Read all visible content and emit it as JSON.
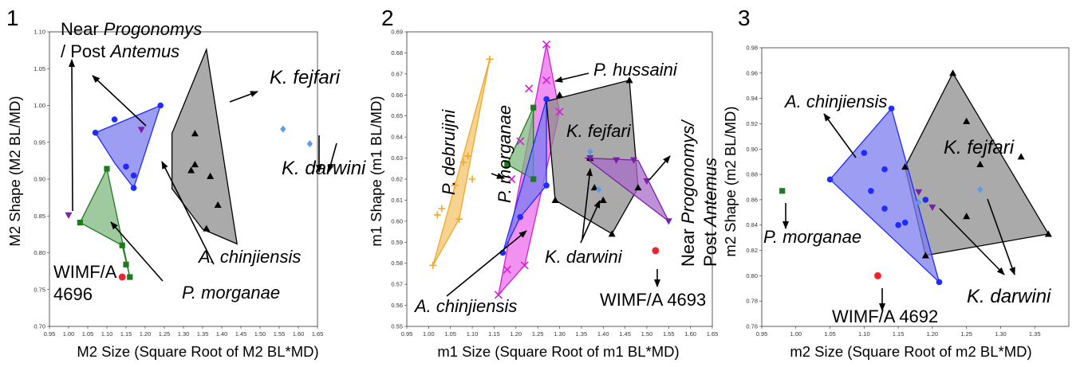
{
  "chart_data": [
    {
      "type": "scatter",
      "panel_label": "1",
      "xlabel": "M2 Size (Square Root of M2 BL*MD)",
      "ylabel": "M2 Shape (M2 BL/MD)",
      "xlim": [
        0.95,
        1.65
      ],
      "ylim": [
        0.7,
        1.1
      ],
      "x_ticks": [
        "0.95",
        "1.00",
        "1.05",
        "1.10",
        "1.15",
        "1.20",
        "1.25",
        "1.30",
        "1.35",
        "1.40",
        "1.45",
        "1.50",
        "1.55",
        "1.60",
        "1.65"
      ],
      "y_ticks": [
        "0.70",
        "0.75",
        "0.80",
        "0.85",
        "0.90",
        "0.95",
        "1.00",
        "1.05",
        "1.10"
      ],
      "series": [
        {
          "name": "A. chinjiensis",
          "color": "#1f2cff",
          "fill": "#7c7cf0",
          "marker": "circle",
          "hull": [
            [
              1.07,
              0.963
            ],
            [
              1.24,
              1.0
            ],
            [
              1.17,
              0.888
            ],
            [
              1.12,
              0.922
            ]
          ],
          "points": [
            [
              1.07,
              0.963
            ],
            [
              1.12,
              0.981
            ],
            [
              1.24,
              1.0
            ],
            [
              1.17,
              0.888
            ],
            [
              1.17,
              0.905
            ],
            [
              1.15,
              0.917
            ]
          ]
        },
        {
          "name": "P. morganae",
          "color": "#1e7a1e",
          "fill": "#7fb77f",
          "marker": "square",
          "hull": [
            [
              1.03,
              0.841
            ],
            [
              1.1,
              0.914
            ],
            [
              1.16,
              0.767
            ],
            [
              1.14,
              0.81
            ]
          ],
          "points": [
            [
              1.03,
              0.841
            ],
            [
              1.1,
              0.914
            ],
            [
              1.14,
              0.81
            ],
            [
              1.15,
              0.784
            ],
            [
              1.16,
              0.767
            ]
          ]
        },
        {
          "name": "K. fejfari",
          "color": "#000000",
          "fill": "#8e8e8e",
          "marker": "triangle",
          "hull": [
            [
              1.27,
              0.962
            ],
            [
              1.36,
              1.076
            ],
            [
              1.44,
              0.812
            ],
            [
              1.35,
              0.832
            ],
            [
              1.27,
              0.887
            ]
          ],
          "points": [
            [
              1.33,
              0.962
            ],
            [
              1.33,
              0.92
            ],
            [
              1.32,
              0.912
            ],
            [
              1.37,
              0.904
            ],
            [
              1.39,
              0.865
            ],
            [
              1.36,
              0.833
            ]
          ]
        },
        {
          "name": "Near Progonomys / Post Antemus",
          "color": "#7a1fa8",
          "marker": "triangle-down",
          "points": [
            [
              1.0,
              0.851
            ],
            [
              1.19,
              0.967
            ]
          ]
        },
        {
          "name": "K. darwini",
          "color": "#5b9be8",
          "marker": "diamond",
          "points": [
            [
              1.56,
              0.968
            ],
            [
              1.63,
              0.948
            ]
          ]
        },
        {
          "name": "WIMF/A 4696",
          "color": "#e8242c",
          "marker": "star",
          "points": [
            [
              1.14,
              0.767
            ]
          ]
        }
      ],
      "annotations": [
        {
          "text": "Near ",
          "italic": "Progonomys",
          "id": "near-a"
        },
        {
          "text": "/ Post ",
          "italic": "Antemus",
          "id": "near-b"
        },
        {
          "text": "K. fejfari",
          "id": "kf"
        },
        {
          "text": "K. darwini",
          "id": "kd"
        },
        {
          "text": "A. chinjiensis",
          "id": "ac"
        },
        {
          "text": "P. morganae",
          "id": "pm"
        },
        {
          "text": "WIMF/A",
          "id": "w1"
        },
        {
          "text": "4696",
          "id": "w2"
        }
      ]
    },
    {
      "type": "scatter",
      "panel_label": "2",
      "xlabel": "m1 Size (Square Root of m1 BL*MD)",
      "ylabel": "m1 Shape (m1 BL/MD)",
      "xlim": [
        0.95,
        1.65
      ],
      "ylim": [
        0.55,
        0.69
      ],
      "x_ticks": [
        "0.95",
        "1.00",
        "1.05",
        "1.10",
        "1.15",
        "1.20",
        "1.25",
        "1.30",
        "1.35",
        "1.40",
        "1.45",
        "1.50",
        "1.55",
        "1.60",
        "1.65"
      ],
      "y_ticks": [
        "0.55",
        "0.56",
        "0.57",
        "0.58",
        "0.59",
        "0.60",
        "0.61",
        "0.62",
        "0.63",
        "0.64",
        "0.65",
        "0.66",
        "0.67",
        "0.68",
        "0.69"
      ],
      "series": [
        {
          "name": "P. debruijni",
          "color": "#f0a82a",
          "fill": "#f6c46a",
          "marker": "plus",
          "hull": [
            [
              1.01,
              0.579
            ],
            [
              1.14,
              0.677
            ],
            [
              1.07,
              0.601
            ]
          ],
          "points": [
            [
              1.01,
              0.579
            ],
            [
              1.02,
              0.603
            ],
            [
              1.03,
              0.606
            ],
            [
              1.06,
              0.617
            ],
            [
              1.07,
              0.601
            ],
            [
              1.08,
              0.628
            ],
            [
              1.09,
              0.631
            ],
            [
              1.1,
              0.62
            ],
            [
              1.14,
              0.677
            ]
          ]
        },
        {
          "name": "P. hussaini",
          "color": "#d41fd4",
          "fill": "#ec6cec",
          "marker": "x",
          "hull": [
            [
              1.16,
              0.565
            ],
            [
              1.27,
              0.684
            ],
            [
              1.3,
              0.652
            ],
            [
              1.22,
              0.579
            ]
          ],
          "points": [
            [
              1.16,
              0.565
            ],
            [
              1.18,
              0.577
            ],
            [
              1.19,
              0.62
            ],
            [
              1.21,
              0.638
            ],
            [
              1.23,
              0.663
            ],
            [
              1.27,
              0.684
            ],
            [
              1.27,
              0.667
            ],
            [
              1.3,
              0.652
            ],
            [
              1.22,
              0.579
            ]
          ]
        },
        {
          "name": "P. morganae",
          "color": "#1e7a1e",
          "fill": "#7fb77f",
          "marker": "square",
          "hull": [
            [
              1.18,
              0.627
            ],
            [
              1.24,
              0.654
            ],
            [
              1.24,
              0.62
            ]
          ],
          "points": [
            [
              1.18,
              0.627
            ],
            [
              1.24,
              0.654
            ],
            [
              1.24,
              0.62
            ]
          ]
        },
        {
          "name": "A. chinjiensis",
          "color": "#1f2cff",
          "fill": "#7c7cf0",
          "marker": "circle",
          "hull": [
            [
              1.17,
              0.585
            ],
            [
              1.27,
              0.658
            ],
            [
              1.27,
              0.617
            ],
            [
              1.21,
              0.602
            ]
          ],
          "points": [
            [
              1.17,
              0.585
            ],
            [
              1.21,
              0.602
            ],
            [
              1.27,
              0.617
            ],
            [
              1.27,
              0.658
            ]
          ]
        },
        {
          "name": "K. fejfari",
          "color": "#000000",
          "fill": "#8e8e8e",
          "marker": "triangle",
          "hull": [
            [
              1.27,
              0.657
            ],
            [
              1.46,
              0.667
            ],
            [
              1.48,
              0.616
            ],
            [
              1.42,
              0.594
            ],
            [
              1.29,
              0.61
            ]
          ],
          "points": [
            [
              1.46,
              0.667
            ],
            [
              1.48,
              0.616
            ],
            [
              1.42,
              0.594
            ],
            [
              1.38,
              0.616
            ],
            [
              1.4,
              0.61
            ],
            [
              1.29,
              0.61
            ],
            [
              1.3,
              0.66
            ],
            [
              1.37,
              0.63
            ]
          ]
        },
        {
          "name": "Near Progonomys / Post Antemus",
          "color": "#7a1fa8",
          "fill": "#a86bc8",
          "marker": "triangle-down",
          "hull": [
            [
              1.36,
              0.63
            ],
            [
              1.48,
              0.629
            ],
            [
              1.55,
              0.6
            ]
          ],
          "points": [
            [
              1.37,
              0.63
            ],
            [
              1.43,
              0.629
            ],
            [
              1.47,
              0.629
            ],
            [
              1.5,
              0.619
            ],
            [
              1.55,
              0.6
            ]
          ]
        },
        {
          "name": "K. darwini",
          "color": "#5b9be8",
          "marker": "diamond",
          "points": [
            [
              1.37,
              0.633
            ],
            [
              1.39,
              0.615
            ]
          ]
        },
        {
          "name": "WIMF/A 4693",
          "color": "#e8242c",
          "marker": "star",
          "points": [
            [
              1.52,
              0.586
            ]
          ]
        }
      ],
      "annotations": [
        {
          "text": "P. debruijni",
          "id": "pd"
        },
        {
          "text": "P. morganae",
          "id": "pm"
        },
        {
          "text": "P. hussaini",
          "id": "ph"
        },
        {
          "text": "K. fejfari",
          "id": "kf"
        },
        {
          "text": "Near ",
          "italic": "Progonomys/",
          "id": "near-a"
        },
        {
          "text": "Post ",
          "italic": "Antemus",
          "id": "near-b"
        },
        {
          "text": "K. darwini",
          "id": "kd"
        },
        {
          "text": "A. chinjiensis",
          "id": "ac"
        },
        {
          "text": "WIMF/A 4693",
          "id": "w"
        }
      ]
    },
    {
      "type": "scatter",
      "panel_label": "3",
      "xlabel": "m2 Size (Square Root of m2 BL*MD)",
      "ylabel": "m2 Shape (m2 BL/MD)",
      "xlim": [
        0.95,
        1.4
      ],
      "ylim": [
        0.76,
        0.98
      ],
      "x_ticks": [
        "0.95",
        "1.00",
        "1.05",
        "1.10",
        "1.15",
        "1.20",
        "1.25",
        "1.30",
        "1.35"
      ],
      "y_ticks": [
        "0.76",
        "0.78",
        "0.80",
        "0.82",
        "0.84",
        "0.86",
        "0.88",
        "0.90",
        "0.92",
        "0.94",
        "0.96",
        "0.98"
      ],
      "series": [
        {
          "name": "K. fejfari",
          "color": "#000000",
          "fill": "#8e8e8e",
          "marker": "triangle",
          "hull": [
            [
              1.16,
              0.886
            ],
            [
              1.23,
              0.96
            ],
            [
              1.37,
              0.833
            ],
            [
              1.19,
              0.816
            ]
          ],
          "points": [
            [
              1.23,
              0.96
            ],
            [
              1.25,
              0.922
            ],
            [
              1.27,
              0.888
            ],
            [
              1.33,
              0.894
            ],
            [
              1.37,
              0.833
            ],
            [
              1.25,
              0.847
            ],
            [
              1.19,
              0.816
            ],
            [
              1.16,
              0.886
            ]
          ]
        },
        {
          "name": "A. chinjiensis",
          "color": "#1f2cff",
          "fill": "#7c7cf0",
          "marker": "circle",
          "hull": [
            [
              1.05,
              0.876
            ],
            [
              1.14,
              0.932
            ],
            [
              1.21,
              0.795
            ]
          ],
          "points": [
            [
              1.05,
              0.876
            ],
            [
              1.1,
              0.897
            ],
            [
              1.14,
              0.932
            ],
            [
              1.11,
              0.867
            ],
            [
              1.13,
              0.884
            ],
            [
              1.13,
              0.853
            ],
            [
              1.15,
              0.84
            ],
            [
              1.16,
              0.842
            ],
            [
              1.19,
              0.86
            ],
            [
              1.21,
              0.795
            ]
          ]
        },
        {
          "name": "Near Progonomys / Post Antemus",
          "color": "#7a1fa8",
          "marker": "triangle-down",
          "points": [
            [
              1.18,
              0.866
            ],
            [
              1.2,
              0.854
            ]
          ]
        },
        {
          "name": "K. darwini",
          "color": "#5b9be8",
          "marker": "diamond",
          "points": [
            [
              1.18,
              0.858
            ],
            [
              1.27,
              0.868
            ]
          ]
        },
        {
          "name": "P. morganae",
          "color": "#1e7a1e",
          "marker": "square",
          "points": [
            [
              0.98,
              0.867
            ]
          ]
        },
        {
          "name": "WIMF/A 4692",
          "color": "#e8242c",
          "marker": "star",
          "points": [
            [
              1.12,
              0.8
            ]
          ]
        }
      ],
      "annotations": [
        {
          "text": "A. chinjiensis",
          "id": "ac"
        },
        {
          "text": "K. fejfari",
          "id": "kf"
        },
        {
          "text": "P. morganae",
          "id": "pm"
        },
        {
          "text": "K. darwini",
          "id": "kd"
        },
        {
          "text": "WIMF/A 4692",
          "id": "w"
        }
      ]
    }
  ]
}
